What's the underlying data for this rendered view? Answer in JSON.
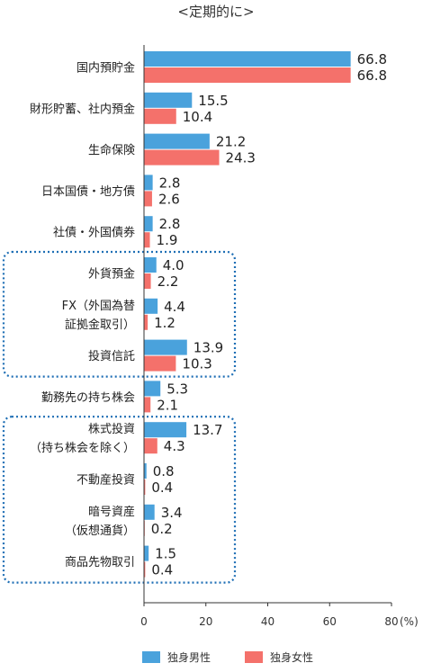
{
  "chart_data": {
    "type": "bar",
    "orientation": "horizontal",
    "title": "<定期的に>",
    "unit": "(%)",
    "xlim": [
      0,
      80
    ],
    "ticks": [
      0,
      20,
      40,
      60,
      80
    ],
    "tick_labels": [
      "0",
      "20",
      "40",
      "60",
      "80"
    ],
    "grid": false,
    "legend_position": "bottom",
    "categories": [
      [
        "国内預貯金"
      ],
      [
        "財形貯蓄、社内預金"
      ],
      [
        "生命保険"
      ],
      [
        "日本国債・地方債"
      ],
      [
        "社債・外国債券"
      ],
      [
        "外貨預金"
      ],
      [
        "FX（外国為替",
        "証拠金取引）"
      ],
      [
        "投資信託"
      ],
      [
        "勤務先の持ち株会"
      ],
      [
        "株式投資",
        "（持ち株会を除く）"
      ],
      [
        "不動産投資"
      ],
      [
        "暗号資産",
        "（仮想通貨）"
      ],
      [
        "商品先物取引"
      ]
    ],
    "series": [
      {
        "name": "独身男性",
        "color": "#4aa2dc",
        "values": [
          66.8,
          15.5,
          21.2,
          2.8,
          2.8,
          4.0,
          4.4,
          13.9,
          5.3,
          13.7,
          0.8,
          3.4,
          1.5
        ]
      },
      {
        "name": "独身女性",
        "color": "#f4716b",
        "values": [
          66.8,
          10.4,
          24.3,
          2.6,
          1.9,
          2.2,
          1.2,
          10.3,
          2.1,
          4.3,
          0.4,
          0.2,
          0.4
        ]
      }
    ],
    "groups": [
      {
        "from": 5,
        "to": 7
      },
      {
        "from": 9,
        "to": 12
      }
    ]
  }
}
